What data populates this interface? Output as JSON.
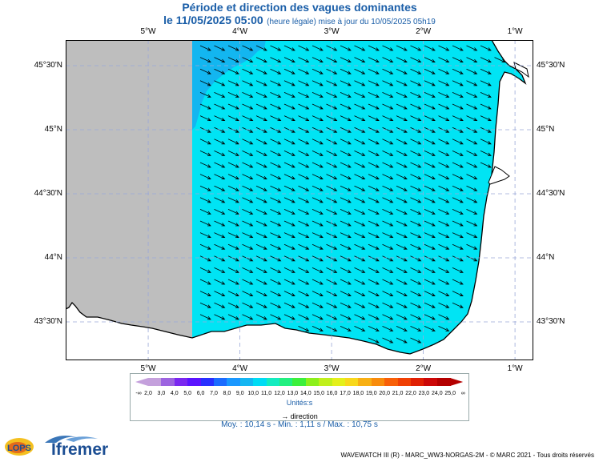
{
  "title": "Période et direction des vagues dominantes",
  "subtitle_date": "le 11/05/2025 05:00",
  "subtitle_note": "(heure légale) mise à jour du 10/05/2025 05h19",
  "axes": {
    "lon_ticks": [
      {
        "value": -5,
        "label": "5°W"
      },
      {
        "value": -4,
        "label": "4°W"
      },
      {
        "value": -3,
        "label": "3°W"
      },
      {
        "value": -2,
        "label": "2°W"
      },
      {
        "value": -1,
        "label": "1°W"
      }
    ],
    "lat_ticks": [
      {
        "value": 45.5,
        "label": "45°30'N"
      },
      {
        "value": 45.0,
        "label": "45°N"
      },
      {
        "value": 44.5,
        "label": "44°30'N"
      },
      {
        "value": 44.0,
        "label": "44°N"
      },
      {
        "value": 43.5,
        "label": "43°30'N"
      }
    ],
    "lon_range": [
      -5.9,
      -0.8
    ],
    "lat_range": [
      43.2,
      45.7
    ]
  },
  "field": {
    "model_left_edge_lon": -4.5,
    "dominant_color": "#00e4f4",
    "nearshore_color": "#13b6f0",
    "land_color": "#ffffff",
    "nodata_color": "#bebebe",
    "arrow_color": "#000000"
  },
  "legend": {
    "colors": [
      "#c4a0dc",
      "#9c64e0",
      "#7a28f0",
      "#5a14ff",
      "#2830ff",
      "#1c6cff",
      "#1a98ff",
      "#15b6f2",
      "#00dcf4",
      "#14ecc0",
      "#22f080",
      "#3cf03c",
      "#8cf01c",
      "#c0f01c",
      "#e4f01c",
      "#f8d81c",
      "#f8b014",
      "#f88c0c",
      "#f86008",
      "#f04004",
      "#e02004",
      "#cc0808",
      "#b40000"
    ],
    "labels": [
      "2,0",
      "3,0",
      "4,0",
      "5,0",
      "6,0",
      "7,0",
      "8,0",
      "9,0",
      "10,0",
      "11,0",
      "12,0",
      "13,0",
      "14,0",
      "15,0",
      "16,0",
      "17,0",
      "18,0",
      "19,0",
      "20,0",
      "21,0",
      "22,0",
      "23,0",
      "24,0",
      "25,0"
    ],
    "neg_inf": "-∞",
    "pos_inf": "∞",
    "units": "Unités:s",
    "direction_label": "direction"
  },
  "stats": "Moy. : 10,14 s  -  Min. : 1,11 s / Max. : 10,75 s",
  "footer": "WAVEWATCH III (R) - MARC_WW3-NORGAS-2M - © MARC 2021 - Tous droits réservés",
  "logos": {
    "lops": "LOPS",
    "ifremer": "Ifremer"
  }
}
